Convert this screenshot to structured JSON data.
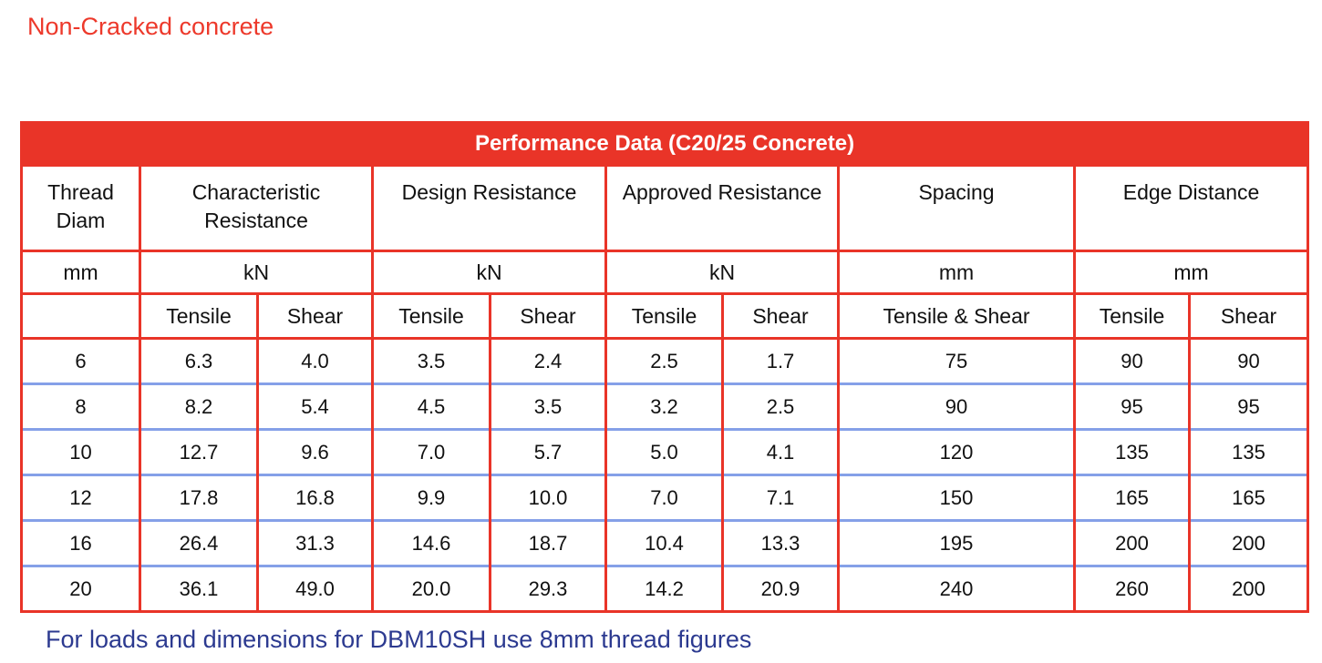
{
  "page": {
    "title": "Non-Cracked concrete",
    "footnote": "For loads and dimensions for DBM10SH use 8mm thread figures"
  },
  "colors": {
    "table_red": "#E93428",
    "row_divider_blue": "#85A0E8",
    "title_red": "#ED392B",
    "footnote_navy": "#2C3A90",
    "band_text": "#FFFFFF"
  },
  "table": {
    "title": "Performance Data (C20/25 Concrete)",
    "groups": [
      {
        "label": "Thread Diam",
        "unit": "mm"
      },
      {
        "label": "Characteristic Resistance",
        "unit": "kN"
      },
      {
        "label": "Design Resistance",
        "unit": "kN"
      },
      {
        "label": "Approved Resistance",
        "unit": "kN"
      },
      {
        "label": "Spacing",
        "unit": "mm"
      },
      {
        "label": "Edge Distance",
        "unit": "mm"
      }
    ],
    "subheaders": [
      "",
      "Tensile",
      "Shear",
      "Tensile",
      "Shear",
      "Tensile",
      "Shear",
      "Tensile & Shear",
      "Tensile",
      "Shear"
    ],
    "rows": [
      [
        "6",
        "6.3",
        "4.0",
        "3.5",
        "2.4",
        "2.5",
        "1.7",
        "75",
        "90",
        "90"
      ],
      [
        "8",
        "8.2",
        "5.4",
        "4.5",
        "3.5",
        "3.2",
        "2.5",
        "90",
        "95",
        "95"
      ],
      [
        "10",
        "12.7",
        "9.6",
        "7.0",
        "5.7",
        "5.0",
        "4.1",
        "120",
        "135",
        "135"
      ],
      [
        "12",
        "17.8",
        "16.8",
        "9.9",
        "10.0",
        "7.0",
        "7.1",
        "150",
        "165",
        "165"
      ],
      [
        "16",
        "26.4",
        "31.3",
        "14.6",
        "18.7",
        "10.4",
        "13.3",
        "195",
        "200",
        "200"
      ],
      [
        "20",
        "36.1",
        "49.0",
        "20.0",
        "29.3",
        "14.2",
        "20.9",
        "240",
        "260",
        "200"
      ]
    ]
  }
}
